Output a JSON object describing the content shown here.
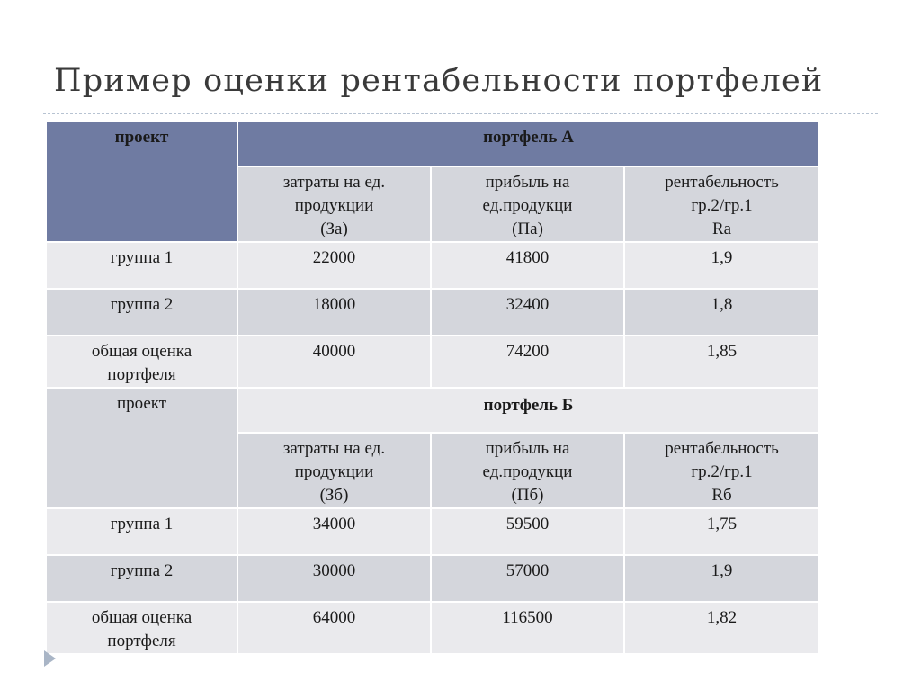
{
  "title": "Пример оценки рентабельности портфелей",
  "table": {
    "portfolio_a": {
      "name": "портфель А",
      "project_label": "проект",
      "columns": [
        [
          "затраты на ед.",
          "продукции",
          "(За)"
        ],
        [
          "прибыль на",
          "ед.продукци",
          "(Па)"
        ],
        [
          "рентабельность",
          "гр.2/гр.1",
          "Rа"
        ]
      ],
      "rows": [
        {
          "label": [
            "группа 1"
          ],
          "values": [
            "22000",
            "41800",
            "1,9"
          ]
        },
        {
          "label": [
            "группа 2"
          ],
          "values": [
            "18000",
            "32400",
            "1,8"
          ]
        },
        {
          "label": [
            "общая оценка",
            "портфеля"
          ],
          "values": [
            "40000",
            "74200",
            "1,85"
          ]
        }
      ]
    },
    "portfolio_b": {
      "name": "портфель Б",
      "project_label": "проект",
      "columns": [
        [
          "затраты на ед.",
          "продукции",
          "(Зб)"
        ],
        [
          "прибыль на",
          "ед.продукци",
          "(Пб)"
        ],
        [
          "рентабельность",
          "гр.2/гр.1",
          "Rб"
        ]
      ],
      "rows": [
        {
          "label": [
            "группа 1"
          ],
          "values": [
            "34000",
            "59500",
            "1,75"
          ]
        },
        {
          "label": [
            "группа 2"
          ],
          "values": [
            "30000",
            "57000",
            "1,9"
          ]
        },
        {
          "label": [
            "общая оценка",
            "портфеля"
          ],
          "values": [
            "64000",
            "116500",
            "1,82"
          ]
        }
      ]
    }
  },
  "colors": {
    "header_blue": "#6f7ba2",
    "row_dark": "#d4d6dc",
    "row_light": "#eaeaed"
  }
}
